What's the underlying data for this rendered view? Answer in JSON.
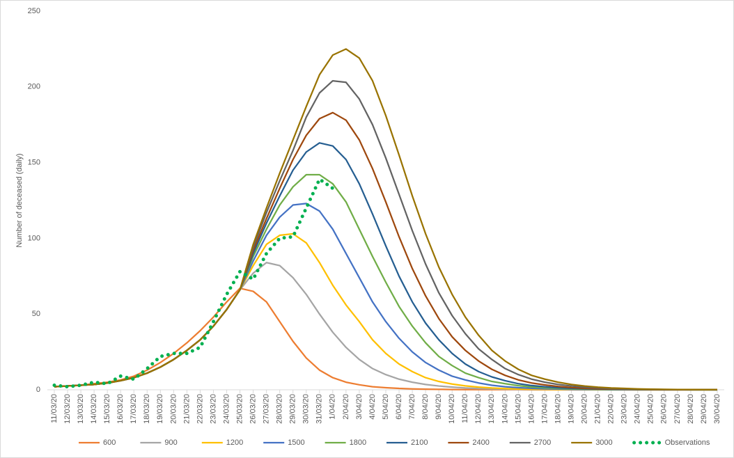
{
  "chart_data": {
    "type": "line",
    "ylabel": "Number of deceased (daily)",
    "categories": [
      "11/03/20",
      "12/03/20",
      "13/03/20",
      "14/03/20",
      "15/03/20",
      "16/03/20",
      "17/03/20",
      "18/03/20",
      "19/03/20",
      "20/03/20",
      "21/03/20",
      "22/03/20",
      "23/03/20",
      "24/03/20",
      "25/03/20",
      "26/03/20",
      "27/03/20",
      "28/03/20",
      "29/03/20",
      "30/03/20",
      "31/03/20",
      "1/04/20",
      "2/04/20",
      "3/04/20",
      "4/04/20",
      "5/04/20",
      "6/04/20",
      "7/04/20",
      "8/04/20",
      "9/04/20",
      "10/04/20",
      "11/04/20",
      "12/04/20",
      "13/04/20",
      "14/04/20",
      "15/04/20",
      "16/04/20",
      "17/04/20",
      "18/04/20",
      "19/04/20",
      "20/04/20",
      "21/04/20",
      "22/04/20",
      "23/04/20",
      "24/04/20",
      "25/04/20",
      "26/04/20",
      "27/04/20",
      "28/04/20",
      "29/04/20",
      "30/04/20"
    ],
    "ylim": [
      0,
      250
    ],
    "yticks": [
      0,
      50,
      100,
      150,
      200,
      250
    ],
    "grid": false,
    "legend": "bottom",
    "series": [
      {
        "name": "600",
        "color": "#ed7d31",
        "values": [
          2,
          2.5,
          3,
          4,
          5,
          6.5,
          9,
          13,
          18,
          24,
          31,
          39,
          48,
          58,
          67,
          65,
          58,
          45,
          32,
          21,
          13,
          8,
          5,
          3.3,
          2,
          1.4,
          0.9,
          0.6,
          0.4,
          0.3,
          0.2,
          0.1,
          0.1,
          0.1,
          0.1,
          0.1,
          0,
          0,
          0,
          0,
          0,
          0,
          0,
          0,
          0,
          0,
          0,
          0,
          0,
          0,
          0
        ]
      },
      {
        "name": "900",
        "color": "#a5a5a5",
        "values": [
          2,
          2.5,
          3,
          3.5,
          4.5,
          6,
          8,
          11,
          15,
          20,
          26,
          33,
          42,
          53,
          66,
          77,
          84,
          82,
          74,
          63,
          50,
          38,
          28,
          20,
          14,
          10,
          7,
          5,
          3.5,
          2.5,
          1.8,
          1.2,
          0.8,
          0.6,
          0.4,
          0.3,
          0.2,
          0.2,
          0.1,
          0.1,
          0.1,
          0.1,
          0,
          0,
          0,
          0,
          0,
          0,
          0,
          0,
          0
        ]
      },
      {
        "name": "1200",
        "color": "#ffc000",
        "values": [
          2,
          2.5,
          3,
          3.5,
          4.5,
          6,
          8,
          11,
          15,
          20,
          26,
          33,
          42,
          53,
          66,
          82,
          96,
          102,
          103,
          97,
          84,
          69,
          56,
          45,
          33,
          24,
          17,
          12,
          8,
          5.5,
          3.8,
          2.6,
          1.8,
          1.2,
          0.8,
          0.5,
          0.4,
          0.3,
          0.2,
          0.2,
          0.1,
          0.1,
          0.1,
          0.1,
          0,
          0,
          0,
          0,
          0,
          0,
          0
        ]
      },
      {
        "name": "1500",
        "color": "#4472c4",
        "values": [
          2,
          2.5,
          3,
          3.5,
          4.5,
          6,
          8,
          11,
          15,
          20,
          26,
          33,
          42,
          53,
          66,
          85,
          102,
          114,
          122,
          123,
          118,
          106,
          90,
          74,
          58,
          45,
          34,
          25,
          18,
          13,
          9,
          6.5,
          4.5,
          3,
          2,
          1.4,
          1,
          0.7,
          0.5,
          0.3,
          0.2,
          0.2,
          0.1,
          0.1,
          0.1,
          0.1,
          0,
          0,
          0,
          0,
          0
        ]
      },
      {
        "name": "1800",
        "color": "#70ad47",
        "values": [
          2,
          2.5,
          3,
          3.5,
          4.5,
          6,
          8,
          11,
          15,
          20,
          26,
          33,
          42,
          53,
          66,
          88,
          106,
          122,
          134,
          142,
          142,
          136,
          124,
          106,
          88,
          71,
          55,
          42,
          31,
          22,
          16,
          11,
          8,
          5.5,
          4,
          2.7,
          1.9,
          1.3,
          0.9,
          0.6,
          0.4,
          0.3,
          0.2,
          0.2,
          0.1,
          0.1,
          0.1,
          0.1,
          0,
          0,
          0
        ]
      },
      {
        "name": "2100",
        "color": "#255e91",
        "values": [
          2,
          2.5,
          3,
          3.5,
          4.5,
          6,
          8,
          11,
          15,
          20,
          26,
          33,
          42,
          53,
          66,
          90,
          110,
          128,
          145,
          157,
          163,
          161,
          152,
          136,
          116,
          95,
          75,
          58,
          44,
          33,
          24,
          17,
          12,
          8.5,
          6,
          4,
          2.8,
          2,
          1.4,
          1,
          0.7,
          0.5,
          0.4,
          0.3,
          0.2,
          0.2,
          0.1,
          0.1,
          0.1,
          0.1,
          0
        ]
      },
      {
        "name": "2400",
        "color": "#9e480e",
        "values": [
          2,
          2.5,
          3,
          3.5,
          4.5,
          6,
          8,
          11,
          15,
          20,
          26,
          33,
          42,
          53,
          66,
          92,
          113,
          133,
          152,
          168,
          179,
          183,
          178,
          165,
          146,
          124,
          101,
          80,
          62,
          47,
          35,
          26,
          19,
          13.5,
          9.5,
          6.5,
          4.5,
          3.2,
          2.2,
          1.5,
          1,
          0.7,
          0.5,
          0.4,
          0.3,
          0.2,
          0.2,
          0.1,
          0.1,
          0.1,
          0.1
        ]
      },
      {
        "name": "2700",
        "color": "#636363",
        "values": [
          2,
          2.5,
          3,
          3.5,
          4.5,
          6,
          8,
          11,
          15,
          20,
          26,
          33,
          42,
          53,
          66,
          94,
          117,
          138,
          158,
          180,
          196,
          204,
          203,
          192,
          175,
          153,
          129,
          105,
          83,
          64,
          49,
          37,
          27,
          20,
          14,
          10,
          7,
          5,
          3.5,
          2.5,
          1.7,
          1.2,
          0.8,
          0.6,
          0.4,
          0.3,
          0.2,
          0.2,
          0.1,
          0.1,
          0.1
        ]
      },
      {
        "name": "3000",
        "color": "#997300",
        "values": [
          2,
          2.5,
          3,
          3.5,
          4.5,
          6,
          8,
          11,
          15,
          20,
          26,
          33,
          42,
          53,
          66,
          96,
          120,
          143,
          165,
          187,
          208,
          221,
          225,
          219,
          204,
          181,
          155,
          128,
          103,
          81,
          63,
          48,
          36,
          26,
          19,
          13.5,
          9.5,
          7,
          5,
          3.5,
          2.5,
          1.7,
          1.2,
          0.9,
          0.6,
          0.4,
          0.3,
          0.2,
          0.2,
          0.1,
          0.1
        ]
      },
      {
        "name": "Observations",
        "color": "#00b050",
        "style": "dotted",
        "values": [
          3,
          2,
          3,
          5,
          4,
          9,
          7,
          14,
          22,
          24,
          24,
          28,
          45,
          63,
          78,
          73,
          90,
          100,
          101,
          120,
          139,
          133,
          null,
          null,
          null,
          null,
          null,
          null,
          null,
          null,
          null,
          null,
          null,
          null,
          null,
          null,
          null,
          null,
          null,
          null,
          null,
          null,
          null,
          null,
          null,
          null,
          null,
          null,
          null,
          null,
          null
        ]
      }
    ]
  }
}
